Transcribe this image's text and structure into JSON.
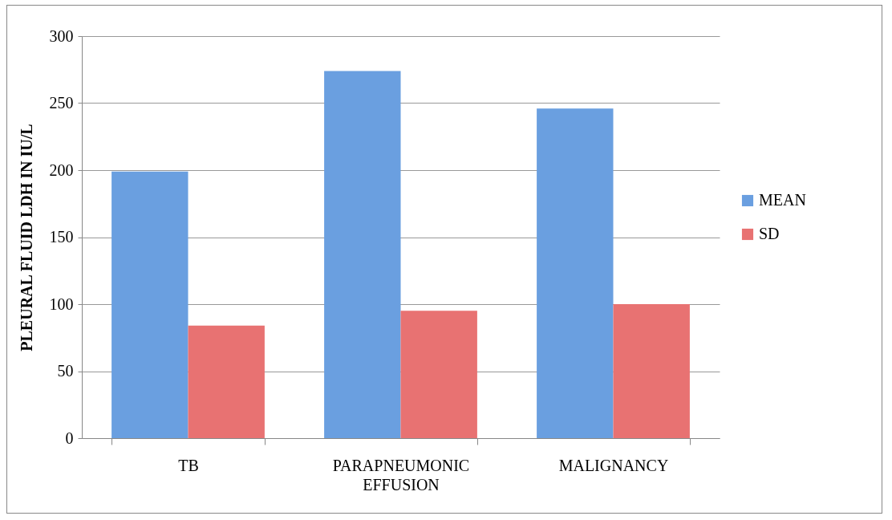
{
  "chart_data": {
    "type": "bar",
    "ylabel": "PLEURAL FLUID LDH IN IU/L",
    "categories": [
      "TB",
      "PARAPNEUMONIC EFFUSION",
      "MALIGNANCY"
    ],
    "series": [
      {
        "name": "MEAN",
        "color": "#6a9fe0",
        "values": [
          199,
          274,
          246
        ]
      },
      {
        "name": "SD",
        "color": "#e87272",
        "values": [
          84,
          95,
          100
        ]
      }
    ],
    "ylim": [
      0,
      300
    ],
    "yticks": [
      0,
      50,
      100,
      150,
      200,
      250,
      300
    ],
    "grid": "y",
    "legend": "right"
  }
}
